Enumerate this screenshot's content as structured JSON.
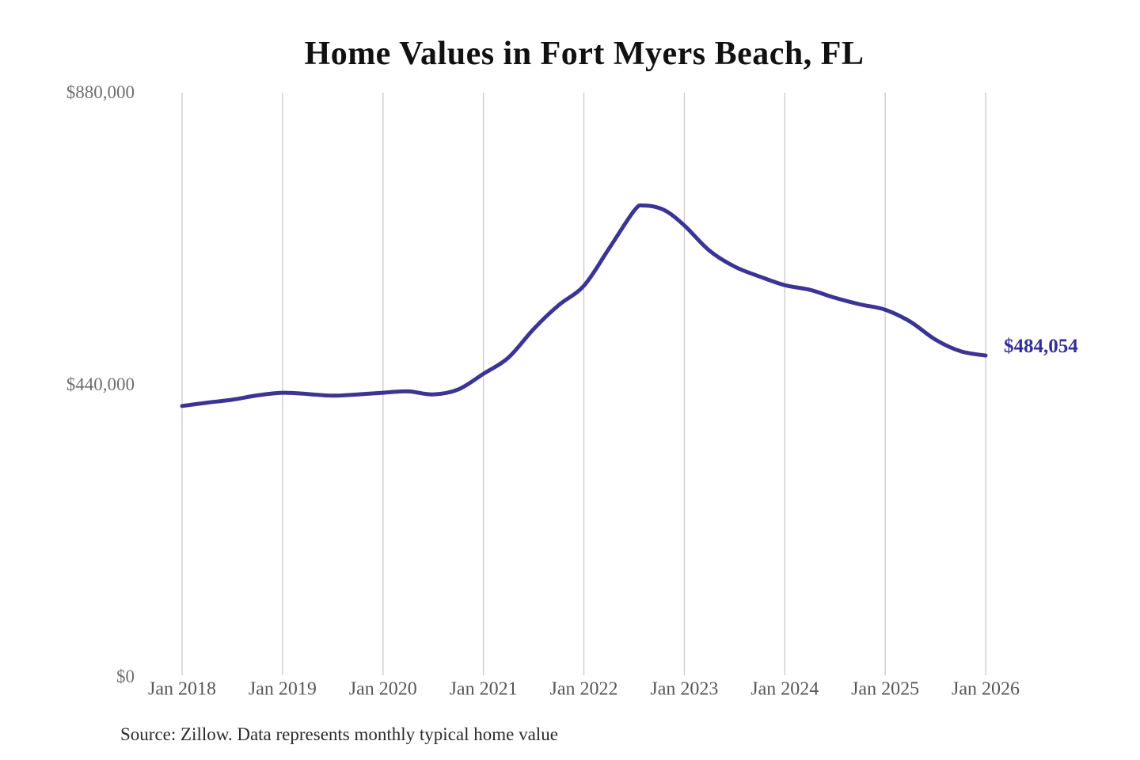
{
  "chart": {
    "title": "Home Values in Fort Myers Beach, FL",
    "source": "Source: Zillow. Data represents monthly typical home value",
    "last_value_label": "$484,054"
  },
  "colors": {
    "line": "#3b3494",
    "label": "#322e9c",
    "grid": "#c9c9c9",
    "title": "#111111",
    "x_tick": "#575757",
    "y_tick": "#6e6e6e",
    "source": "#2b2b2b",
    "background": "#ffffff"
  },
  "chart_data": {
    "type": "line",
    "title": "Home Values in Fort Myers Beach, FL",
    "xlabel": "",
    "ylabel": "",
    "xlim": [
      2018,
      2026
    ],
    "ylim": [
      0,
      880000
    ],
    "grid": "vertical",
    "legend": "none",
    "x_ticks": [
      {
        "label": "Jan 2018",
        "value": 2018
      },
      {
        "label": "Jan 2019",
        "value": 2019
      },
      {
        "label": "Jan 2020",
        "value": 2020
      },
      {
        "label": "Jan 2021",
        "value": 2021
      },
      {
        "label": "Jan 2022",
        "value": 2022
      },
      {
        "label": "Jan 2023",
        "value": 2023
      },
      {
        "label": "Jan 2024",
        "value": 2024
      },
      {
        "label": "Jan 2025",
        "value": 2025
      },
      {
        "label": "Jan 2026",
        "value": 2026
      }
    ],
    "y_ticks": [
      {
        "label": "$880,000",
        "value": 880000
      },
      {
        "label": "$440,000",
        "value": 440000
      },
      {
        "label": "$0",
        "value": 0
      }
    ],
    "series": [
      {
        "name": "Monthly typical home value",
        "color": "#3b3494",
        "end_value": 484054,
        "end_label": "$484,054",
        "points": [
          {
            "x": 2018.0,
            "v": 408000
          },
          {
            "x": 2018.25,
            "v": 413000
          },
          {
            "x": 2018.5,
            "v": 417500
          },
          {
            "x": 2018.75,
            "v": 424000
          },
          {
            "x": 2019.0,
            "v": 428000
          },
          {
            "x": 2019.25,
            "v": 426000
          },
          {
            "x": 2019.5,
            "v": 423500
          },
          {
            "x": 2019.75,
            "v": 425500
          },
          {
            "x": 2020.0,
            "v": 428000
          },
          {
            "x": 2020.25,
            "v": 430000
          },
          {
            "x": 2020.5,
            "v": 425500
          },
          {
            "x": 2020.75,
            "v": 433000
          },
          {
            "x": 2021.0,
            "v": 456500
          },
          {
            "x": 2021.25,
            "v": 481000
          },
          {
            "x": 2021.5,
            "v": 524000
          },
          {
            "x": 2021.75,
            "v": 560000
          },
          {
            "x": 2022.0,
            "v": 589000
          },
          {
            "x": 2022.25,
            "v": 645000
          },
          {
            "x": 2022.5,
            "v": 702000
          },
          {
            "x": 2022.6,
            "v": 710000
          },
          {
            "x": 2022.8,
            "v": 703000
          },
          {
            "x": 2023.0,
            "v": 680000
          },
          {
            "x": 2023.25,
            "v": 642000
          },
          {
            "x": 2023.5,
            "v": 618000
          },
          {
            "x": 2023.75,
            "v": 603000
          },
          {
            "x": 2024.0,
            "v": 590000
          },
          {
            "x": 2024.25,
            "v": 583000
          },
          {
            "x": 2024.5,
            "v": 571000
          },
          {
            "x": 2024.75,
            "v": 561000
          },
          {
            "x": 2025.0,
            "v": 553000
          },
          {
            "x": 2025.25,
            "v": 535000
          },
          {
            "x": 2025.5,
            "v": 508000
          },
          {
            "x": 2025.75,
            "v": 490500
          },
          {
            "x": 2026.0,
            "v": 484054
          }
        ]
      }
    ],
    "source": "Source: Zillow. Data represents monthly typical home value"
  }
}
